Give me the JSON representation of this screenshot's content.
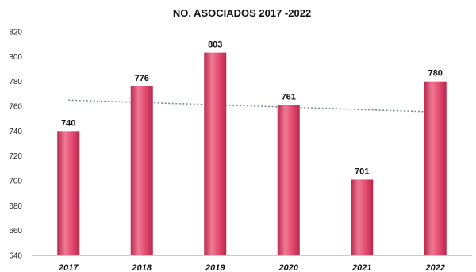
{
  "chart_data": {
    "type": "bar",
    "title": "NO. ASOCIADOS 2017 -2022",
    "xlabel": "",
    "ylabel": "",
    "categories": [
      "2017",
      "2018",
      "2019",
      "2020",
      "2021",
      "2022"
    ],
    "values": [
      740,
      776,
      803,
      761,
      701,
      780
    ],
    "data_labels": [
      "740",
      "776",
      "803",
      "761",
      "701",
      "780"
    ],
    "ylim": [
      640,
      820
    ],
    "yticks": [
      640,
      660,
      680,
      700,
      720,
      740,
      760,
      780,
      800,
      820
    ],
    "grid": false,
    "legend": "none",
    "trendline": {
      "type": "linear",
      "style": "dotted"
    },
    "colors": {
      "bar": "#e0466b",
      "bar_dark": "#b8284d",
      "bar_light": "#f07a95",
      "trend": "#7a8aa0",
      "axis": "#999999"
    }
  }
}
